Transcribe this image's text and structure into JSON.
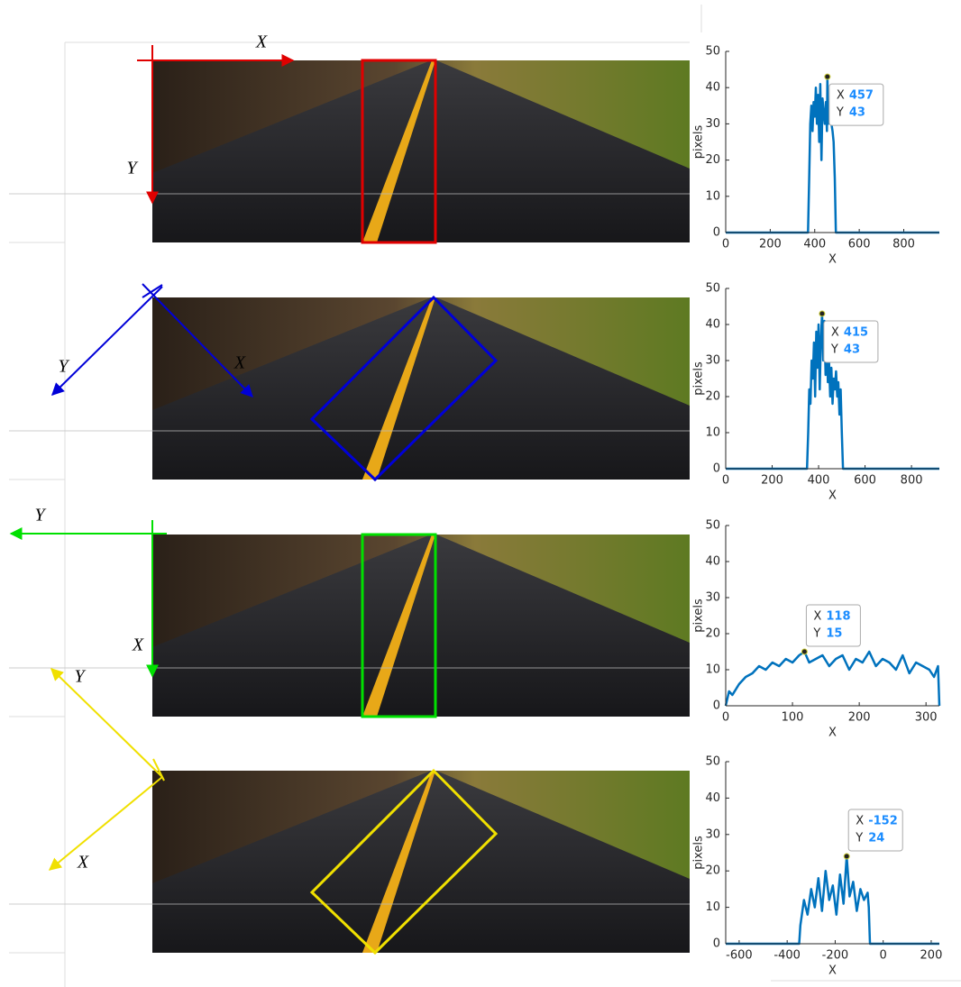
{
  "figure": {
    "panels": [
      {
        "x_label": "X",
        "y_label": "Y"
      },
      {
        "x_label": "X",
        "y_label": "Y"
      },
      {
        "x_label": "X",
        "y_label": "Y"
      },
      {
        "x_label": "X",
        "y_label": "Y"
      }
    ]
  },
  "chart_data": [
    {
      "type": "line",
      "xlabel": "X",
      "ylabel": "pixels",
      "color": "#0072bd",
      "x": [
        0,
        370,
        375,
        380,
        385,
        390,
        395,
        400,
        405,
        410,
        415,
        420,
        425,
        430,
        435,
        440,
        445,
        450,
        455,
        457,
        460,
        465,
        470,
        475,
        480,
        485,
        490,
        495,
        960
      ],
      "values": [
        0,
        0,
        15,
        30,
        35,
        28,
        36,
        32,
        40,
        30,
        38,
        25,
        41,
        20,
        37,
        33,
        30,
        36,
        28,
        43,
        30,
        36,
        32,
        30,
        28,
        25,
        15,
        0,
        0
      ],
      "xlim": [
        0,
        960
      ],
      "xticks": [
        0,
        200,
        400,
        600,
        800
      ],
      "ylim": [
        0,
        50
      ],
      "yticks": [
        0,
        10,
        20,
        30,
        40,
        50
      ],
      "datatip": {
        "x_label": "X",
        "x": 457,
        "y_label": "Y",
        "y": 43
      }
    },
    {
      "type": "line",
      "xlabel": "X",
      "ylabel": "pixels",
      "color": "#0072bd",
      "x": [
        0,
        350,
        355,
        360,
        365,
        370,
        375,
        380,
        385,
        390,
        395,
        400,
        405,
        410,
        415,
        420,
        425,
        430,
        435,
        440,
        445,
        450,
        455,
        460,
        465,
        470,
        475,
        480,
        485,
        490,
        495,
        500,
        505,
        510,
        920
      ],
      "values": [
        0,
        0,
        10,
        22,
        18,
        30,
        25,
        35,
        20,
        38,
        28,
        40,
        22,
        36,
        43,
        30,
        41,
        26,
        38,
        24,
        30,
        20,
        28,
        18,
        25,
        22,
        27,
        20,
        24,
        15,
        22,
        10,
        0,
        0,
        0
      ],
      "xlim": [
        0,
        920
      ],
      "xticks": [
        0,
        200,
        400,
        600,
        800
      ],
      "ylim": [
        0,
        50
      ],
      "yticks": [
        0,
        10,
        20,
        30,
        40,
        50
      ],
      "datatip": {
        "x_label": "X",
        "x": 415,
        "y_label": "Y",
        "y": 43
      }
    },
    {
      "type": "line",
      "xlabel": "X",
      "ylabel": "pixels",
      "color": "#0072bd",
      "x": [
        0,
        5,
        10,
        20,
        30,
        40,
        50,
        60,
        70,
        80,
        90,
        100,
        110,
        118,
        125,
        135,
        145,
        155,
        165,
        175,
        185,
        195,
        205,
        215,
        225,
        235,
        245,
        255,
        265,
        275,
        285,
        295,
        305,
        312,
        318,
        320
      ],
      "values": [
        0,
        4,
        3,
        6,
        8,
        9,
        11,
        10,
        12,
        11,
        13,
        12,
        14,
        15,
        12,
        13,
        14,
        11,
        13,
        14,
        10,
        13,
        12,
        15,
        11,
        13,
        12,
        10,
        14,
        9,
        12,
        11,
        10,
        8,
        11,
        0
      ],
      "xlim": [
        0,
        320
      ],
      "xticks": [
        0,
        100,
        200,
        300
      ],
      "ylim": [
        0,
        50
      ],
      "yticks": [
        0,
        10,
        20,
        30,
        40,
        50
      ],
      "datatip": {
        "x_label": "X",
        "x": 118,
        "y_label": "Y",
        "y": 15
      }
    },
    {
      "type": "line",
      "xlabel": "X",
      "ylabel": "pixels",
      "color": "#0072bd",
      "x": [
        -656,
        -350,
        -345,
        -330,
        -315,
        -300,
        -285,
        -270,
        -255,
        -240,
        -225,
        -210,
        -195,
        -180,
        -165,
        -152,
        -140,
        -125,
        -110,
        -95,
        -80,
        -65,
        -60,
        -55,
        234
      ],
      "values": [
        0,
        0,
        5,
        12,
        8,
        15,
        10,
        18,
        9,
        20,
        12,
        16,
        8,
        19,
        11,
        24,
        13,
        17,
        9,
        15,
        12,
        14,
        10,
        0,
        0
      ],
      "xlim": [
        -656,
        234
      ],
      "xticks": [
        -600,
        -400,
        -200,
        0,
        200
      ],
      "ylim": [
        0,
        50
      ],
      "yticks": [
        0,
        10,
        20,
        30,
        40,
        50
      ],
      "datatip": {
        "x_label": "X",
        "x": -152,
        "y_label": "Y",
        "y": 24
      }
    }
  ]
}
